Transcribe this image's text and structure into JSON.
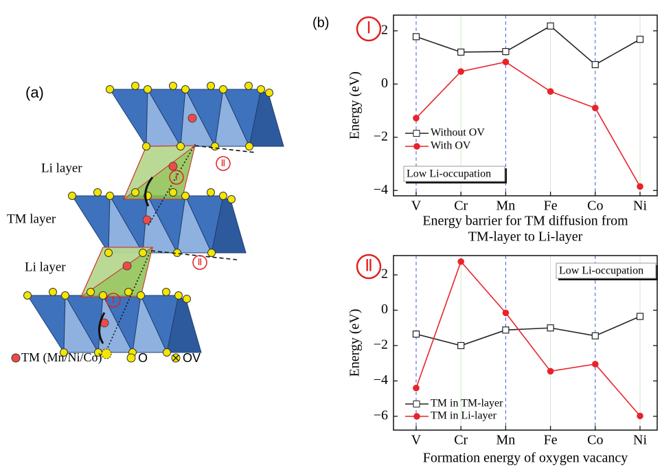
{
  "panel_a": {
    "label": "(a)",
    "layers": [
      "Li layer",
      "TM layer",
      "Li layer"
    ],
    "markers": [
      "Ⅰ",
      "Ⅱ",
      "Ⅰ",
      "Ⅱ"
    ],
    "legend": [
      "TM (Mn/Ni/Co)",
      "O",
      "OV"
    ]
  },
  "panel_b_label": "(b)",
  "chart_data": [
    {
      "type": "line",
      "marker": "Ⅰ",
      "y_label": "Energy (eV)",
      "x_label": [
        "Energy barrier for TM diffusion from",
        "TM-layer to Li-layer"
      ],
      "annotation": "Low Li-occupation",
      "categories": [
        "V",
        "Cr",
        "Mn",
        "Fe",
        "Co",
        "Ni"
      ],
      "series": [
        {
          "name": "Without OV",
          "color": "#222222",
          "values": [
            1.78,
            1.2,
            1.22,
            2.18,
            0.73,
            1.68
          ]
        },
        {
          "name": "With OV",
          "color": "#e8232a",
          "values": [
            -1.28,
            0.47,
            0.83,
            -0.28,
            -0.9,
            -3.85
          ]
        }
      ],
      "ylim": [
        -4.2,
        2.59
      ],
      "yticks": [
        {
          "value": -4,
          "label": "−4"
        },
        {
          "value": -2,
          "label": "−2"
        },
        0,
        2
      ]
    },
    {
      "type": "line",
      "marker": "Ⅱ",
      "y_label": "Energy (eV)",
      "x_label": [
        "Formation energy of oxygen vacancy"
      ],
      "annotation": "Low Li-occupation",
      "categories": [
        "V",
        "Cr",
        "Mn",
        "Fe",
        "Co",
        "Ni"
      ],
      "series": [
        {
          "name": "TM in TM-layer",
          "color": "#222222",
          "values": [
            -1.35,
            -2.0,
            -1.12,
            -1.0,
            -1.45,
            -0.35
          ]
        },
        {
          "name": "TM in Li-layer",
          "color": "#e8232a",
          "values": [
            -4.4,
            2.75,
            -0.15,
            -3.45,
            -3.05,
            -5.98
          ]
        }
      ],
      "ylim": [
        -6.78,
        3.09
      ],
      "yticks": [
        {
          "value": -6,
          "label": "−6"
        },
        {
          "value": -4,
          "label": "−4"
        },
        {
          "value": -2,
          "label": "−2"
        },
        0,
        2
      ]
    }
  ]
}
